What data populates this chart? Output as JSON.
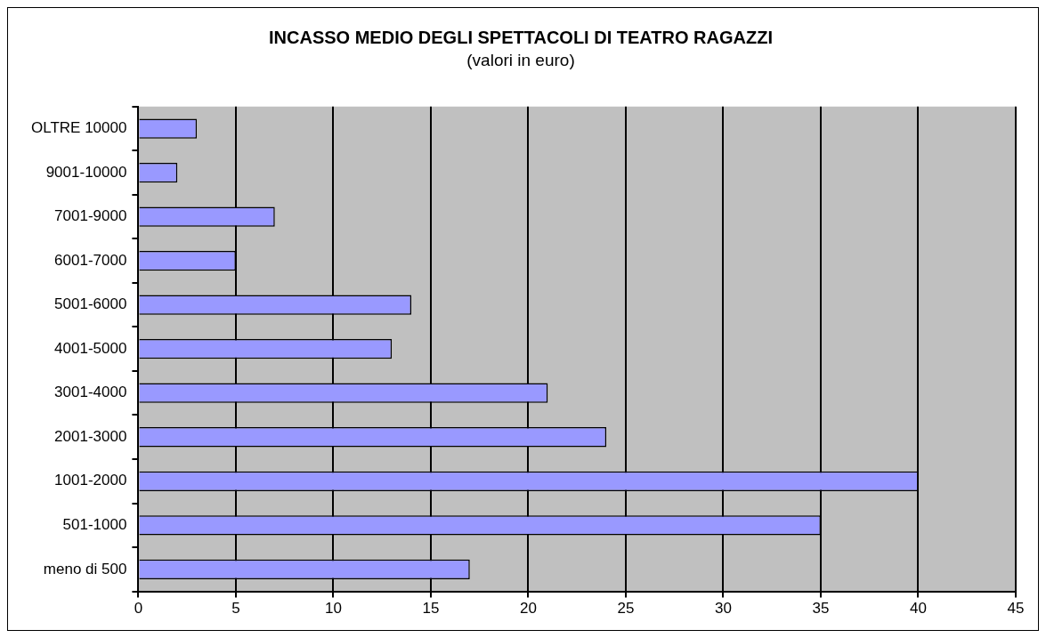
{
  "chart_data": {
    "type": "bar",
    "orientation": "horizontal",
    "title": "INCASSO MEDIO DEGLI SPETTACOLI DI TEATRO RAGAZZI",
    "subtitle": "(valori in euro)",
    "categories": [
      "OLTRE 10000",
      "9001-10000",
      "7001-9000",
      "6001-7000",
      "5001-6000",
      "4001-5000",
      "3001-4000",
      "2001-3000",
      "1001-2000",
      "501-1000",
      "meno di 500"
    ],
    "values": [
      3,
      2,
      7,
      5,
      14,
      13,
      21,
      24,
      40,
      35,
      17
    ],
    "color": "#9999ff",
    "xlim": [
      0,
      45
    ],
    "xticks": [
      0,
      5,
      10,
      15,
      20,
      25,
      30,
      35,
      40,
      45
    ],
    "grid": "x",
    "legend": false
  }
}
